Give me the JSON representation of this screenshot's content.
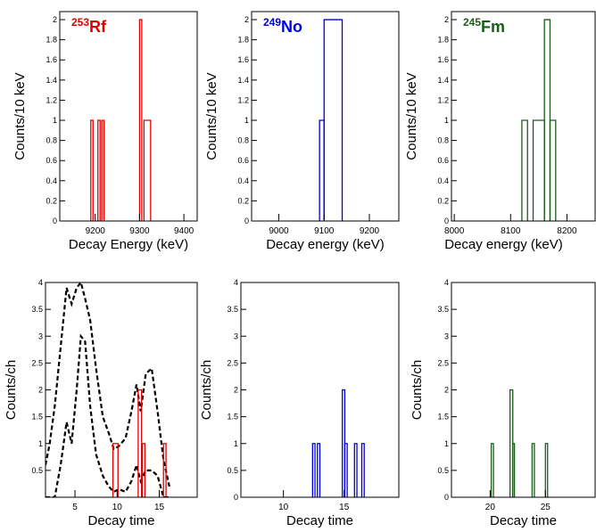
{
  "chart_data": [
    {
      "type": "histogram",
      "isotope": {
        "mass": "253",
        "symbol": "Rf",
        "color": "#e00000"
      },
      "xlabel": "Decay Energy (keV)",
      "ylabel": "Counts/10 keV",
      "xlim": [
        9120,
        9430
      ],
      "ylim": [
        0,
        2.08
      ],
      "xticks": [
        9200,
        9300,
        9400
      ],
      "xtick_labels": [
        "9200",
        "9300",
        "9400"
      ],
      "yticks": [
        0.2,
        0.4,
        0.6,
        0.8,
        1,
        1.2,
        1.4,
        1.6,
        1.8,
        2
      ],
      "ytick_labels": [
        "0.2",
        "0.4",
        "0.6",
        "0.8",
        "1",
        "1.2",
        "1.4",
        "1.6",
        "1.8",
        "2"
      ],
      "y_zero_label": "0",
      "color": "#e00000",
      "bins": [
        [
          9190,
          9195,
          1
        ],
        [
          9206,
          9211,
          1
        ],
        [
          9215,
          9220,
          1
        ],
        [
          9300,
          9305,
          2
        ],
        [
          9310,
          9325,
          1
        ]
      ]
    },
    {
      "type": "histogram",
      "isotope": {
        "mass": "249",
        "symbol": "No",
        "color": "#0000dd"
      },
      "xlabel": "Decay energy (keV)",
      "ylabel": "Counts/10 keV",
      "xlim": [
        8940,
        9265
      ],
      "ylim": [
        0,
        2.08
      ],
      "xticks": [
        9000,
        9100,
        9200
      ],
      "xtick_labels": [
        "9000",
        "9100",
        "9200"
      ],
      "yticks": [
        0.2,
        0.4,
        0.6,
        0.8,
        1,
        1.2,
        1.4,
        1.6,
        1.8,
        2
      ],
      "ytick_labels": [
        "0.2",
        "0.4",
        "0.6",
        "0.8",
        "1",
        "1.2",
        "1.4",
        "1.6",
        "1.8",
        "2"
      ],
      "y_zero_label": "0",
      "color": "#0000dd",
      "bins": [
        [
          9090,
          9100,
          1
        ],
        [
          9100,
          9140,
          2
        ]
      ]
    },
    {
      "type": "histogram",
      "isotope": {
        "mass": "245",
        "symbol": "Fm",
        "color": "#1a5c1a"
      },
      "xlabel": "Decay energy (keV)",
      "ylabel": "Counts/10 keV",
      "xlim": [
        7995,
        8250
      ],
      "ylim": [
        0,
        2.08
      ],
      "xticks": [
        8000,
        8100,
        8200
      ],
      "xtick_labels": [
        "8000",
        "8100",
        "8200"
      ],
      "yticks": [
        0.2,
        0.4,
        0.6,
        0.8,
        1,
        1.2,
        1.4,
        1.6,
        1.8,
        2
      ],
      "ytick_labels": [
        "0.2",
        "0.4",
        "0.6",
        "0.8",
        "1",
        "1.2",
        "1.4",
        "1.6",
        "1.8",
        "2"
      ],
      "y_zero_label": "0",
      "color": "#1a5c1a",
      "bins": [
        [
          8120,
          8130,
          1
        ],
        [
          8140,
          8160,
          1
        ],
        [
          8160,
          8170,
          2
        ],
        [
          8170,
          8180,
          1
        ]
      ]
    },
    {
      "type": "histogram",
      "xlabel": "Decay time",
      "ylabel": "Counts/ch",
      "xlim": [
        1.5,
        19.5
      ],
      "ylim": [
        0,
        4
      ],
      "xticks": [
        5,
        10,
        15
      ],
      "xtick_labels": [
        "5",
        "10",
        "15"
      ],
      "yticks": [
        0.5,
        1,
        1.5,
        2,
        2.5,
        3,
        3.5,
        4
      ],
      "ytick_labels": [
        "0.5",
        "1",
        "1.5",
        "2",
        "2.5",
        "3",
        "3.5",
        "4"
      ],
      "y_zero_label": "",
      "color": "#e00000",
      "bins": [
        [
          9.5,
          10.1,
          1
        ],
        [
          12.5,
          12.9,
          2
        ],
        [
          13.0,
          13.3,
          1
        ],
        [
          15.5,
          15.8,
          1
        ]
      ],
      "fit_curves": [
        {
          "color": "#000000",
          "style": "dashed",
          "x": [
            1.5,
            2.0,
            2.6,
            3.3,
            4.0,
            4.6,
            5.2,
            5.7,
            6.2,
            6.8,
            7.5,
            8.3,
            9.0,
            9.6,
            10.2,
            11.0,
            11.7,
            12.3,
            12.8,
            13.4,
            14.1,
            14.8,
            15.5,
            16.2
          ],
          "lower": [
            0,
            0,
            0,
            0.6,
            1.4,
            1.0,
            2.0,
            3.0,
            2.9,
            1.7,
            0.8,
            0.4,
            0.2,
            0.1,
            0.15,
            0.1,
            0.3,
            0.6,
            0.3,
            0.5,
            0.5,
            0.4,
            0,
            0
          ],
          "upper": [
            0.6,
            1.0,
            1.7,
            2.8,
            3.9,
            3.6,
            3.9,
            4.0,
            3.7,
            3.3,
            2.4,
            1.5,
            1.2,
            0.9,
            0.95,
            1.1,
            1.6,
            2.1,
            1.6,
            2.3,
            2.4,
            1.6,
            0.7,
            0.2
          ]
        }
      ]
    },
    {
      "type": "histogram",
      "xlabel": "Decay time",
      "ylabel": "Counts/ch",
      "xlim": [
        6.5,
        19.5
      ],
      "ylim": [
        0,
        4
      ],
      "xticks": [
        10,
        15
      ],
      "xtick_labels": [
        "10",
        "15"
      ],
      "yticks": [
        0.5,
        1,
        1.5,
        2,
        2.5,
        3,
        3.5,
        4
      ],
      "ytick_labels": [
        "0.5",
        "1",
        "1.5",
        "2",
        "2.5",
        "3",
        "3.5",
        "4"
      ],
      "y_zero_label": "0",
      "color": "#0000dd",
      "bins": [
        [
          12.4,
          12.6,
          1
        ],
        [
          12.8,
          13.0,
          1
        ],
        [
          14.85,
          15.05,
          2
        ],
        [
          15.05,
          15.25,
          1
        ],
        [
          15.85,
          16.05,
          1
        ],
        [
          16.45,
          16.65,
          1
        ]
      ]
    },
    {
      "type": "histogram",
      "xlabel": "Decay time",
      "ylabel": "Counts/ch",
      "xlim": [
        16.5,
        29.5
      ],
      "ylim": [
        0,
        4
      ],
      "xticks": [
        20,
        25
      ],
      "xtick_labels": [
        "20",
        "25"
      ],
      "yticks": [
        0.5,
        1,
        1.5,
        2,
        2.5,
        3,
        3.5,
        4
      ],
      "ytick_labels": [
        "0.5",
        "1",
        "1.5",
        "2",
        "2.5",
        "3",
        "3.5",
        "4"
      ],
      "y_zero_label": "0",
      "color": "#1a5c1a",
      "bins": [
        [
          20.1,
          20.3,
          1
        ],
        [
          21.8,
          22.05,
          2
        ],
        [
          22.05,
          22.2,
          1
        ],
        [
          23.8,
          24.0,
          1
        ],
        [
          25.0,
          25.2,
          1
        ]
      ]
    }
  ]
}
